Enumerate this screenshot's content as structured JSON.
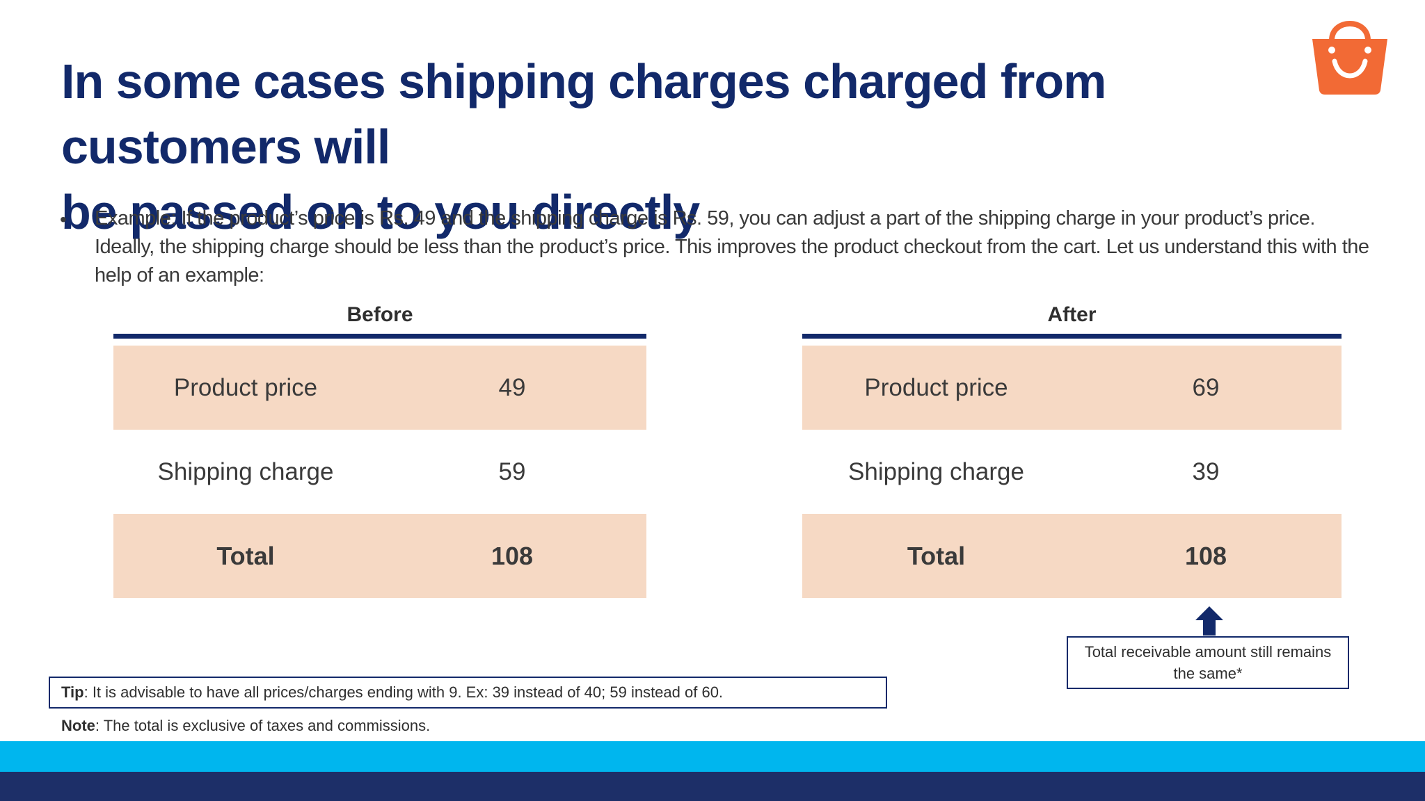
{
  "title": {
    "line1": "In some cases shipping charges charged from customers will",
    "line2": "be passed on to you directly"
  },
  "logo": {
    "icon": "shopping-bag-smile-icon",
    "color": "#f26a35"
  },
  "bullet": {
    "line1": "Example: If the product’s price is Rs. 49 and the shipping charge is Rs. 59, you can adjust a part of  the shipping charge in your product’s price.",
    "line2": "Ideally, the shipping charge should be less than the product’s price. This improves the product checkout from the cart. Let us understand this with the",
    "line3": "help of an example:"
  },
  "before": {
    "header": "Before",
    "rows": [
      {
        "label": "Product price",
        "value": "49"
      },
      {
        "label": "Shipping charge",
        "value": "59"
      },
      {
        "label": "Total",
        "value": "108"
      }
    ]
  },
  "after": {
    "header": "After",
    "rows": [
      {
        "label": "Product price",
        "value": "69"
      },
      {
        "label": "Shipping charge",
        "value": "39"
      },
      {
        "label": "Total",
        "value": "108"
      }
    ]
  },
  "callout": {
    "text": "Total receivable amount still remains the same*"
  },
  "tip": {
    "label": "Tip",
    "text": ": It is advisable to have all prices/charges ending with 9. Ex: 39 instead of 40; 59 instead of 60."
  },
  "note": {
    "label": "Note",
    "text": ": The total is exclusive of taxes and commissions."
  },
  "colors": {
    "title": "#12296a",
    "row_shade": "#f6d9c4",
    "band_light": "#00b6ee",
    "band_dark": "#1d2f68"
  }
}
